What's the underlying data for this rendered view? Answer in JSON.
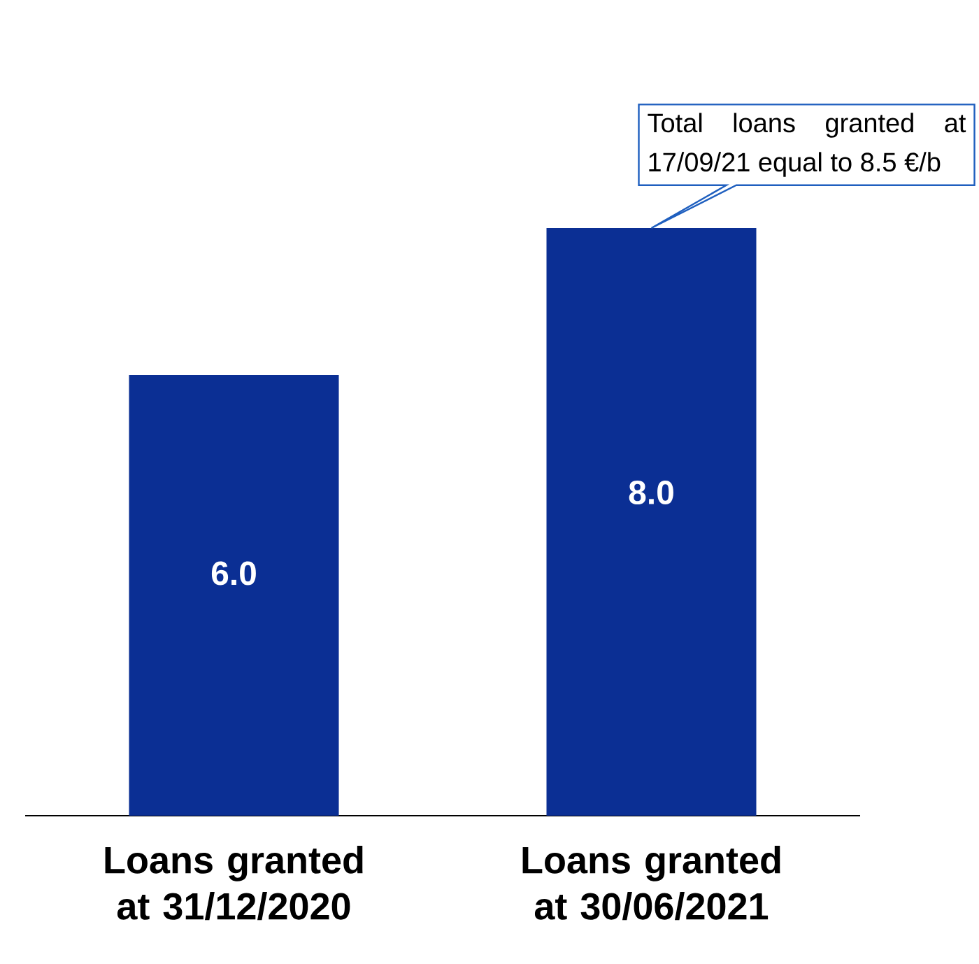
{
  "chart_data": {
    "type": "bar",
    "categories": [
      "Loans granted at 31/12/2020",
      "Loans granted at 30/06/2021"
    ],
    "values": [
      6.0,
      8.0
    ],
    "value_labels": [
      "6.0",
      "8.0"
    ],
    "color": "#0b2f94",
    "annotations": [
      "Total loans granted at 17/09/21 equal to 8.5 €/b"
    ]
  }
}
